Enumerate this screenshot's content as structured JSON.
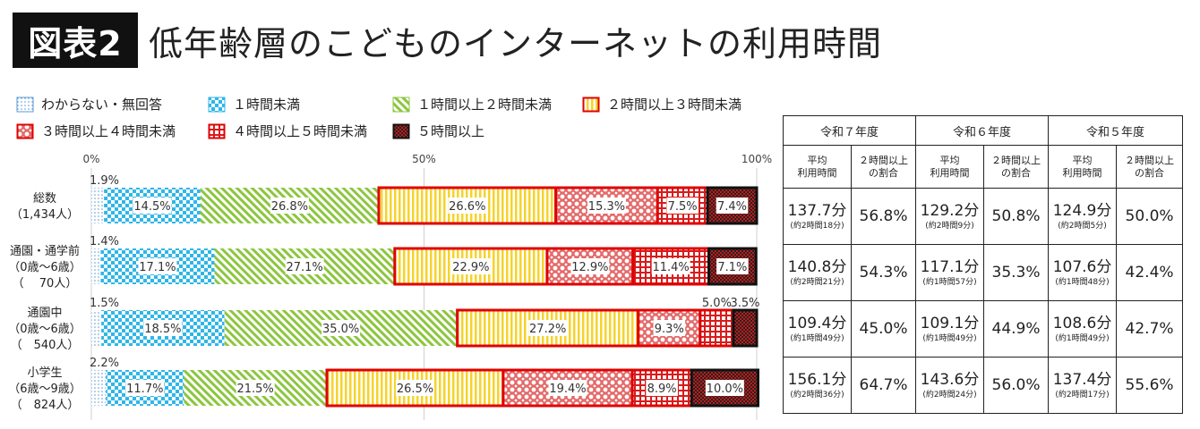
{
  "header": {
    "badge": "図表2",
    "title": "低年齢層のこどものインターネットの利用時間"
  },
  "legend": [
    {
      "label": "わからない・無回答",
      "pattern": "dots"
    },
    {
      "label": "１時間未満",
      "pattern": "checker"
    },
    {
      "label": "１時間以上２時間未満",
      "pattern": "diag"
    },
    {
      "label": "２時間以上３時間未満",
      "pattern": "vert"
    },
    {
      "label": "３時間以上４時間未満",
      "pattern": "circles"
    },
    {
      "label": "４時間以上５時間未満",
      "pattern": "grid"
    },
    {
      "label": "５時間以上",
      "pattern": "dense"
    }
  ],
  "chart_data": {
    "type": "bar",
    "orientation": "horizontal",
    "stacked": true,
    "xlim": [
      0,
      100
    ],
    "tick_labels": [
      "0%",
      "50%",
      "100%"
    ],
    "categories": [
      {
        "label": "総数",
        "lines": [
          "総数",
          "（1,434人）"
        ]
      },
      {
        "label": "通園・通学前",
        "lines": [
          "通園・通学前",
          "（0歳～6歳）",
          "（　 70人）"
        ]
      },
      {
        "label": "通園中",
        "lines": [
          "通園中",
          "（0歳～6歳）",
          "（　540人）"
        ]
      },
      {
        "label": "小学生",
        "lines": [
          "小学生",
          "（6歳～9歳）",
          "（　824人）"
        ]
      }
    ],
    "series": [
      {
        "name": "わからない・無回答",
        "values": [
          1.9,
          1.4,
          1.5,
          2.2
        ],
        "labels": [
          "1.9%",
          "1.4%",
          "1.5%",
          "2.2%"
        ]
      },
      {
        "name": "１時間未満",
        "values": [
          14.5,
          17.1,
          18.5,
          11.7
        ],
        "labels": [
          "14.5%",
          "17.1%",
          "18.5%",
          "11.7%"
        ]
      },
      {
        "name": "１時間以上２時間未満",
        "values": [
          26.8,
          27.1,
          35.0,
          21.5
        ],
        "labels": [
          "26.8%",
          "27.1%",
          "35.0%",
          "21.5%"
        ]
      },
      {
        "name": "２時間以上３時間未満",
        "values": [
          26.6,
          22.9,
          27.2,
          26.5
        ],
        "labels": [
          "26.6%",
          "22.9%",
          "27.2%",
          "26.5%"
        ]
      },
      {
        "name": "３時間以上４時間未満",
        "values": [
          15.3,
          12.9,
          9.3,
          19.4
        ],
        "labels": [
          "15.3%",
          "12.9%",
          "9.3%",
          "19.4%"
        ]
      },
      {
        "name": "４時間以上５時間未満",
        "values": [
          7.5,
          11.4,
          5.0,
          8.9
        ],
        "labels": [
          "7.5%",
          "11.4%",
          "5.0%",
          "8.9%"
        ]
      },
      {
        "name": "５時間以上",
        "values": [
          7.4,
          7.1,
          3.5,
          10.0
        ],
        "labels": [
          "7.4%",
          "7.1%",
          "3.5%",
          "10.0%"
        ]
      }
    ]
  },
  "table": {
    "years": [
      "令和７年度",
      "令和６年度",
      "令和５年度"
    ],
    "col_avg": "平均\n利用時間",
    "col_ratio": "２時間以上\nの割合",
    "rows": [
      [
        {
          "avg": "137.7分",
          "sub": "(約2時間18分)",
          "ratio": "56.8%"
        },
        {
          "avg": "129.2分",
          "sub": "(約2時間9分)",
          "ratio": "50.8%"
        },
        {
          "avg": "124.9分",
          "sub": "(約2時間5分)",
          "ratio": "50.0%"
        }
      ],
      [
        {
          "avg": "140.8分",
          "sub": "(約2時間21分)",
          "ratio": "54.3%"
        },
        {
          "avg": "117.1分",
          "sub": "(約1時間57分)",
          "ratio": "35.3%"
        },
        {
          "avg": "107.6分",
          "sub": "(約1時間48分)",
          "ratio": "42.4%"
        }
      ],
      [
        {
          "avg": "109.4分",
          "sub": "(約1時間49分)",
          "ratio": "45.0%"
        },
        {
          "avg": "109.1分",
          "sub": "(約1時間49分)",
          "ratio": "44.9%"
        },
        {
          "avg": "108.6分",
          "sub": "(約1時間49分)",
          "ratio": "42.7%"
        }
      ],
      [
        {
          "avg": "156.1分",
          "sub": "(約2時間36分)",
          "ratio": "64.7%"
        },
        {
          "avg": "143.6分",
          "sub": "(約2時間24分)",
          "ratio": "56.0%"
        },
        {
          "avg": "137.4分",
          "sub": "(約2時間17分)",
          "ratio": "55.6%"
        }
      ]
    ]
  },
  "colors": {
    "dots": "#5b9bd5",
    "checker": "#2fb6e8",
    "diag": "#8cc63f",
    "vert": "#f6d32a",
    "circles": "#e05a5a",
    "grid": "#d81b1b",
    "dense": "#c11a1a",
    "frame_red": "#e00000",
    "frame_black": "#111111"
  }
}
